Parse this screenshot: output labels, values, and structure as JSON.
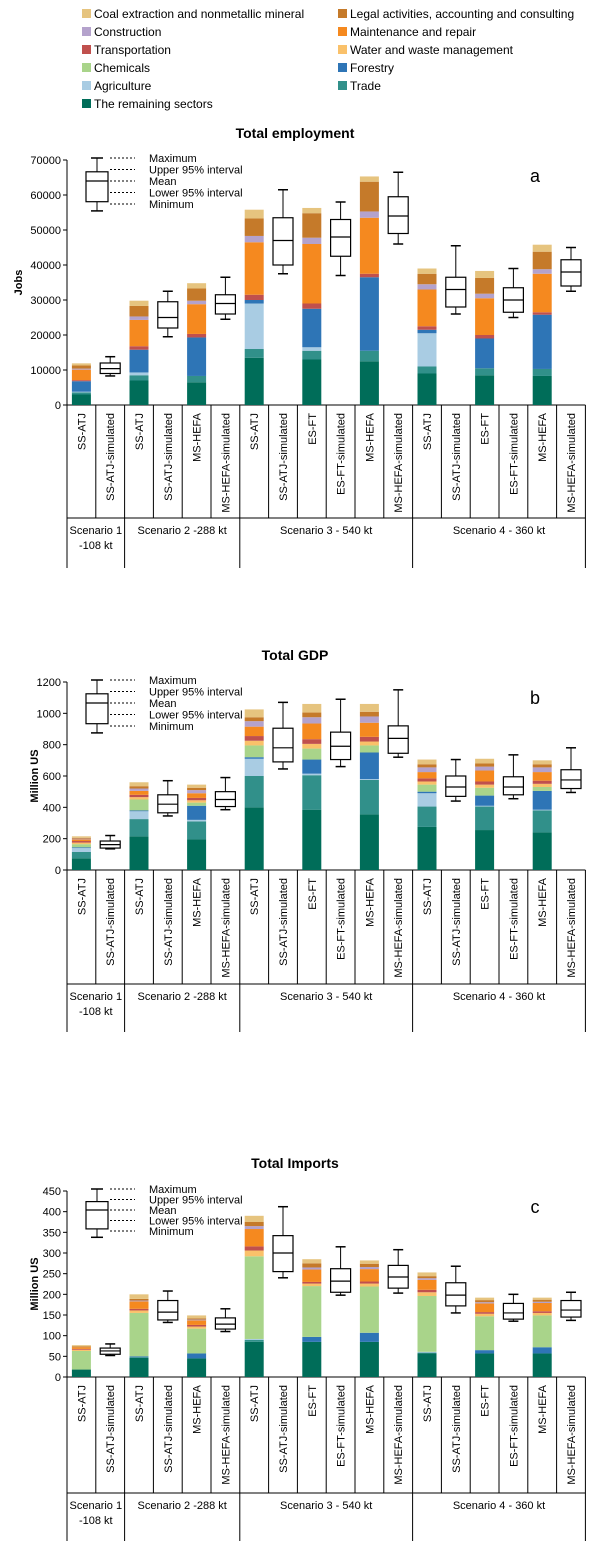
{
  "legend": [
    {
      "name": "Coal extraction and nonmetallic mineral",
      "color": "#E6C47F"
    },
    {
      "name": "Legal activities, accounting and consulting",
      "color": "#C57A2A"
    },
    {
      "name": "Construction",
      "color": "#B4A2CC"
    },
    {
      "name": "Maintenance and repair",
      "color": "#F5891F"
    },
    {
      "name": "Transportation",
      "color": "#C0504D"
    },
    {
      "name": "Water and waste management",
      "color": "#FAC16A"
    },
    {
      "name": "Chemicals",
      "color": "#A9D48A"
    },
    {
      "name": "Forestry",
      "color": "#2E75B6"
    },
    {
      "name": "Agriculture",
      "color": "#A9CCE3"
    },
    {
      "name": "Trade",
      "color": "#31908A"
    },
    {
      "name": "The remaining sectors",
      "color": "#006D59"
    }
  ],
  "box_legend": [
    "Maximum",
    "Upper 95% interval",
    "Mean",
    "Lower 95% interval",
    "Minimum"
  ],
  "chart_data": [
    {
      "type": "bar",
      "letter": "a",
      "title": "Total employment",
      "ylabel": "Jobs",
      "ylim": [
        0,
        70000
      ],
      "yticks": [
        0,
        10000,
        20000,
        30000,
        40000,
        50000,
        60000,
        70000
      ],
      "categories": [
        "SS-ATJ",
        "SS-ATJ-simulated",
        "SS-ATJ",
        "SS-ATJ-simulated",
        "MS-HEFA",
        "MS-HEFA-simulated",
        "SS-ATJ",
        "SS-ATJ-simulated",
        "ES-FT",
        "ES-FT-simulated",
        "MS-HEFA",
        "MS-HEFA-simulated",
        "SS-ATJ",
        "SS-ATJ-simulated",
        "ES-FT",
        "ES-FT-simulated",
        "MS-HEFA",
        "MS-HEFA-simulated"
      ],
      "groups": [
        {
          "label": "Scenario 1 -108 kt",
          "start": 0,
          "end": 1
        },
        {
          "label": "Scenario 2 -288 kt",
          "start": 2,
          "end": 5
        },
        {
          "label": "Scenario 3 - 540 kt",
          "start": 6,
          "end": 11
        },
        {
          "label": "Scenario 4 - 360 kt",
          "start": 12,
          "end": 17
        }
      ],
      "stacks": {
        "0": [
          3000,
          600,
          200,
          3000,
          0,
          0,
          300,
          3000,
          300,
          900,
          600
        ],
        "2": [
          7000,
          1500,
          800,
          6500,
          0,
          0,
          1000,
          7500,
          1000,
          3000,
          1500
        ],
        "4": [
          6500,
          1800,
          0,
          11000,
          0,
          0,
          1000,
          8500,
          1000,
          3500,
          1500
        ],
        "6": [
          13500,
          2500,
          13000,
          1000,
          0,
          0,
          1500,
          15000,
          1800,
          5000,
          2500
        ],
        "8": [
          13000,
          2500,
          1000,
          11000,
          0,
          0,
          1500,
          17000,
          1800,
          7000,
          1500
        ],
        "10": [
          12500,
          3000,
          0,
          21000,
          0,
          0,
          1000,
          16000,
          1800,
          8500,
          1500
        ],
        "12": [
          9000,
          2000,
          9500,
          1000,
          0,
          0,
          1000,
          10500,
          1500,
          3000,
          1500
        ],
        "14": [
          8500,
          2000,
          0,
          8500,
          0,
          0,
          1000,
          10500,
          1300,
          4500,
          2000
        ],
        "16": [
          8300,
          2000,
          0,
          15500,
          0,
          0,
          700,
          11000,
          1300,
          5000,
          2000
        ]
      },
      "boxes": {
        "1": {
          "min": 8300,
          "lo": 9000,
          "mean": 10400,
          "hi": 12000,
          "max": 13800
        },
        "3": {
          "min": 19500,
          "lo": 22000,
          "mean": 25000,
          "hi": 29500,
          "max": 32500
        },
        "5": {
          "min": 24500,
          "lo": 26000,
          "mean": 29000,
          "hi": 31500,
          "max": 36500
        },
        "7": {
          "min": 37500,
          "lo": 40000,
          "mean": 47000,
          "hi": 53500,
          "max": 61500
        },
        "9": {
          "min": 37000,
          "lo": 42500,
          "mean": 48000,
          "hi": 53000,
          "max": 58000
        },
        "11": {
          "min": 46000,
          "lo": 49000,
          "mean": 54000,
          "hi": 59500,
          "max": 66500
        },
        "13": {
          "min": 26000,
          "lo": 28000,
          "mean": 33000,
          "hi": 36500,
          "max": 45500
        },
        "15": {
          "min": 25000,
          "lo": 26500,
          "mean": 30000,
          "hi": 33500,
          "max": 39000
        },
        "17": {
          "min": 32500,
          "lo": 34000,
          "mean": 38000,
          "hi": 41500,
          "max": 45000
        }
      }
    },
    {
      "type": "bar",
      "letter": "b",
      "title": "Total GDP",
      "ylabel": "Million US",
      "ylim": [
        0,
        1200
      ],
      "yticks": [
        0,
        200,
        400,
        600,
        800,
        1000,
        1200
      ],
      "categories": [
        "SS-ATJ",
        "SS-ATJ-simulated",
        "SS-ATJ",
        "SS-ATJ-simulated",
        "MS-HEFA",
        "MS-HEFA-simulated",
        "SS-ATJ",
        "SS-ATJ-simulated",
        "ES-FT",
        "ES-FT-simulated",
        "MS-HEFA",
        "MS-HEFA-simulated",
        "SS-ATJ",
        "SS-ATJ-simulated",
        "ES-FT",
        "ES-FT-simulated",
        "MS-HEFA",
        "MS-HEFA-simulated"
      ],
      "groups": [
        {
          "label": "Scenario 1 -108 kt",
          "start": 0,
          "end": 1
        },
        {
          "label": "Scenario 2 -288 kt",
          "start": 2,
          "end": 5
        },
        {
          "label": "Scenario 3 - 540 kt",
          "start": 6,
          "end": 11
        },
        {
          "label": "Scenario 4 - 360 kt",
          "start": 12,
          "end": 17
        }
      ],
      "stacks": {
        "0": [
          75,
          40,
          25,
          5,
          20,
          10,
          10,
          10,
          5,
          5,
          10
        ],
        "2": [
          215,
          110,
          50,
          5,
          70,
          15,
          15,
          25,
          15,
          15,
          25
        ],
        "4": [
          195,
          115,
          10,
          90,
          20,
          15,
          15,
          30,
          20,
          15,
          20
        ],
        "6": [
          400,
          200,
          110,
          10,
          75,
          30,
          30,
          60,
          35,
          25,
          50
        ],
        "8": [
          385,
          220,
          10,
          90,
          70,
          30,
          30,
          100,
          40,
          30,
          55
        ],
        "10": [
          355,
          220,
          5,
          170,
          45,
          25,
          30,
          90,
          40,
          30,
          50
        ],
        "12": [
          275,
          130,
          85,
          10,
          45,
          20,
          20,
          40,
          30,
          20,
          30
        ],
        "14": [
          255,
          150,
          5,
          65,
          50,
          20,
          20,
          70,
          25,
          20,
          30
        ],
        "16": [
          240,
          140,
          5,
          120,
          25,
          20,
          20,
          55,
          30,
          20,
          25
        ]
      },
      "boxes": {
        "1": {
          "min": 135,
          "lo": 140,
          "mean": 162,
          "hi": 185,
          "max": 220
        },
        "3": {
          "min": 345,
          "lo": 365,
          "mean": 420,
          "hi": 480,
          "max": 570
        },
        "5": {
          "min": 385,
          "lo": 405,
          "mean": 450,
          "hi": 500,
          "max": 590
        },
        "7": {
          "min": 645,
          "lo": 690,
          "mean": 780,
          "hi": 905,
          "max": 1070
        },
        "9": {
          "min": 660,
          "lo": 705,
          "mean": 790,
          "hi": 880,
          "max": 1090
        },
        "11": {
          "min": 720,
          "lo": 745,
          "mean": 840,
          "hi": 920,
          "max": 1150
        },
        "13": {
          "min": 440,
          "lo": 470,
          "mean": 530,
          "hi": 600,
          "max": 705
        },
        "15": {
          "min": 455,
          "lo": 480,
          "mean": 530,
          "hi": 595,
          "max": 735
        },
        "17": {
          "min": 495,
          "lo": 520,
          "mean": 575,
          "hi": 640,
          "max": 780
        }
      }
    },
    {
      "type": "bar",
      "letter": "c",
      "title": "Total Imports",
      "ylabel": "Million US",
      "ylim": [
        0,
        450
      ],
      "yticks": [
        0,
        50,
        100,
        150,
        200,
        250,
        300,
        350,
        400,
        450
      ],
      "categories": [
        "SS-ATJ",
        "SS-ATJ-simulated",
        "SS-ATJ",
        "SS-ATJ-simulated",
        "MS-HEFA",
        "MS-HEFA-simulated",
        "SS-ATJ",
        "SS-ATJ-simulated",
        "ES-FT",
        "ES-FT-simulated",
        "MS-HEFA",
        "MS-HEFA-simulated",
        "SS-ATJ",
        "SS-ATJ-simulated",
        "ES-FT",
        "ES-FT-simulated",
        "MS-HEFA",
        "MS-HEFA-simulated"
      ],
      "groups": [
        {
          "label": "Scenario 1 -108 kt",
          "start": 0,
          "end": 1
        },
        {
          "label": "Scenario 2 -288 kt",
          "start": 2,
          "end": 5
        },
        {
          "label": "Scenario 3 - 540 kt",
          "start": 6,
          "end": 11
        },
        {
          "label": "Scenario 4 - 360 kt",
          "start": 12,
          "end": 17
        }
      ],
      "stacks": {
        "0": [
          18,
          0,
          0,
          0,
          45,
          3,
          2,
          4,
          0,
          2,
          3
        ],
        "2": [
          46,
          2,
          0,
          2,
          105,
          6,
          4,
          18,
          2,
          4,
          11
        ],
        "4": [
          45,
          0,
          0,
          12,
          60,
          5,
          4,
          11,
          2,
          3,
          7
        ],
        "6": [
          85,
          5,
          2,
          0,
          200,
          14,
          10,
          42,
          7,
          10,
          15
        ],
        "8": [
          85,
          0,
          0,
          12,
          123,
          6,
          4,
          30,
          5,
          10,
          10
        ],
        "10": [
          85,
          0,
          0,
          22,
          112,
          7,
          5,
          30,
          5,
          8,
          8
        ],
        "12": [
          57,
          2,
          2,
          0,
          135,
          9,
          6,
          24,
          4,
          5,
          9
        ],
        "14": [
          57,
          0,
          0,
          8,
          82,
          6,
          4,
          21,
          3,
          5,
          6
        ],
        "16": [
          57,
          0,
          0,
          15,
          77,
          6,
          4,
          20,
          3,
          5,
          5
        ]
      },
      "boxes": {
        "1": {
          "min": 52,
          "lo": 55,
          "mean": 63,
          "hi": 70,
          "max": 80
        },
        "3": {
          "min": 132,
          "lo": 138,
          "mean": 157,
          "hi": 185,
          "max": 208
        },
        "5": {
          "min": 110,
          "lo": 116,
          "mean": 128,
          "hi": 143,
          "max": 165
        },
        "7": {
          "min": 240,
          "lo": 255,
          "mean": 300,
          "hi": 342,
          "max": 412
        },
        "9": {
          "min": 198,
          "lo": 205,
          "mean": 232,
          "hi": 262,
          "max": 315
        },
        "11": {
          "min": 203,
          "lo": 215,
          "mean": 242,
          "hi": 270,
          "max": 308
        },
        "13": {
          "min": 155,
          "lo": 172,
          "mean": 198,
          "hi": 228,
          "max": 268
        },
        "15": {
          "min": 135,
          "lo": 140,
          "mean": 155,
          "hi": 178,
          "max": 200
        },
        "17": {
          "min": 137,
          "lo": 145,
          "mean": 162,
          "hi": 185,
          "max": 205
        }
      }
    }
  ]
}
